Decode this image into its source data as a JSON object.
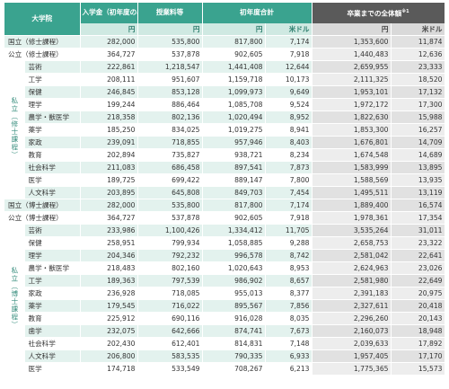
{
  "header": {
    "col_univ": "大学院",
    "col_entrance": "入学金（初年度のみ）",
    "col_tuition": "授業料等",
    "col_first_year": "初年度合計",
    "col_total": "卒業までの全体額",
    "total_note": "※1",
    "unit_yen": "円",
    "unit_usd": "米ドル"
  },
  "rows_top": [
    {
      "univ": "国立（修士課程）",
      "entrance": "282,000",
      "tuition": "535,800",
      "first_yen": "817,800",
      "first_usd": "7,174",
      "total_yen": "1,353,600",
      "total_usd": "11,874"
    },
    {
      "univ": "公立（修士課程）",
      "entrance": "364,727",
      "tuition": "537,878",
      "first_yen": "902,605",
      "first_usd": "7,918",
      "total_yen": "1,440,483",
      "total_usd": "12,636"
    }
  ],
  "private_master_label": "私立（修士課程）",
  "private_master": [
    {
      "field": "芸術",
      "entrance": "222,861",
      "tuition": "1,218,547",
      "first_yen": "1,441,408",
      "first_usd": "12,644",
      "total_yen": "2,659,955",
      "total_usd": "23,333"
    },
    {
      "field": "工学",
      "entrance": "208,111",
      "tuition": "951,607",
      "first_yen": "1,159,718",
      "first_usd": "10,173",
      "total_yen": "2,111,325",
      "total_usd": "18,520"
    },
    {
      "field": "保健",
      "entrance": "246,845",
      "tuition": "853,128",
      "first_yen": "1,099,973",
      "first_usd": "9,649",
      "total_yen": "1,953,101",
      "total_usd": "17,132"
    },
    {
      "field": "理学",
      "entrance": "199,244",
      "tuition": "886,464",
      "first_yen": "1,085,708",
      "first_usd": "9,524",
      "total_yen": "1,972,172",
      "total_usd": "17,300"
    },
    {
      "field": "農学・獣医学",
      "entrance": "218,358",
      "tuition": "802,136",
      "first_yen": "1,020,494",
      "first_usd": "8,952",
      "total_yen": "1,822,630",
      "total_usd": "15,988"
    },
    {
      "field": "薬学",
      "entrance": "185,250",
      "tuition": "834,025",
      "first_yen": "1,019,275",
      "first_usd": "8,941",
      "total_yen": "1,853,300",
      "total_usd": "16,257"
    },
    {
      "field": "家政",
      "entrance": "239,091",
      "tuition": "718,855",
      "first_yen": "957,946",
      "first_usd": "8,403",
      "total_yen": "1,676,801",
      "total_usd": "14,709"
    },
    {
      "field": "教育",
      "entrance": "202,894",
      "tuition": "735,827",
      "first_yen": "938,721",
      "first_usd": "8,234",
      "total_yen": "1,674,548",
      "total_usd": "14,689"
    },
    {
      "field": "社会科学",
      "entrance": "211,083",
      "tuition": "686,458",
      "first_yen": "897,541",
      "first_usd": "7,873",
      "total_yen": "1,583,999",
      "total_usd": "13,895"
    },
    {
      "field": "医学",
      "entrance": "189,725",
      "tuition": "699,422",
      "first_yen": "889,147",
      "first_usd": "7,800",
      "total_yen": "1,588,569",
      "total_usd": "13,935"
    },
    {
      "field": "人文科学",
      "entrance": "203,895",
      "tuition": "645,808",
      "first_yen": "849,703",
      "first_usd": "7,454",
      "total_yen": "1,495,511",
      "total_usd": "13,119"
    }
  ],
  "rows_mid": [
    {
      "univ": "国立（博士課程）",
      "entrance": "282,000",
      "tuition": "535,800",
      "first_yen": "817,800",
      "first_usd": "7,174",
      "total_yen": "1,889,400",
      "total_usd": "16,574"
    },
    {
      "univ": "公立（博士課程）",
      "entrance": "364,727",
      "tuition": "537,878",
      "first_yen": "902,605",
      "first_usd": "7,918",
      "total_yen": "1,978,361",
      "total_usd": "17,354"
    }
  ],
  "private_doctor_label": "私立（博士課程）",
  "private_doctor": [
    {
      "field": "芸術",
      "entrance": "233,986",
      "tuition": "1,100,426",
      "first_yen": "1,334,412",
      "first_usd": "11,705",
      "total_yen": "3,535,264",
      "total_usd": "31,011"
    },
    {
      "field": "保健",
      "entrance": "258,951",
      "tuition": "799,934",
      "first_yen": "1,058,885",
      "first_usd": "9,288",
      "total_yen": "2,658,753",
      "total_usd": "23,322"
    },
    {
      "field": "理学",
      "entrance": "204,346",
      "tuition": "792,232",
      "first_yen": "996,578",
      "first_usd": "8,742",
      "total_yen": "2,581,042",
      "total_usd": "22,641"
    },
    {
      "field": "農学・獣医学",
      "entrance": "218,483",
      "tuition": "802,160",
      "first_yen": "1,020,643",
      "first_usd": "8,953",
      "total_yen": "2,624,963",
      "total_usd": "23,026"
    },
    {
      "field": "工学",
      "entrance": "189,363",
      "tuition": "797,539",
      "first_yen": "986,902",
      "first_usd": "8,657",
      "total_yen": "2,581,980",
      "total_usd": "22,649"
    },
    {
      "field": "家政",
      "entrance": "236,928",
      "tuition": "718,085",
      "first_yen": "955,013",
      "first_usd": "8,377",
      "total_yen": "2,391,183",
      "total_usd": "20,975"
    },
    {
      "field": "薬学",
      "entrance": "179,545",
      "tuition": "716,022",
      "first_yen": "895,567",
      "first_usd": "7,856",
      "total_yen": "2,327,611",
      "total_usd": "20,418"
    },
    {
      "field": "教育",
      "entrance": "225,912",
      "tuition": "690,116",
      "first_yen": "916,028",
      "first_usd": "8,035",
      "total_yen": "2,296,260",
      "total_usd": "20,143"
    },
    {
      "field": "歯学",
      "entrance": "232,075",
      "tuition": "642,666",
      "first_yen": "874,741",
      "first_usd": "7,673",
      "total_yen": "2,160,073",
      "total_usd": "18,948"
    },
    {
      "field": "社会科学",
      "entrance": "202,430",
      "tuition": "612,401",
      "first_yen": "814,831",
      "first_usd": "7,148",
      "total_yen": "2,039,633",
      "total_usd": "17,892"
    },
    {
      "field": "人文科学",
      "entrance": "206,800",
      "tuition": "583,535",
      "first_yen": "790,335",
      "first_usd": "6,933",
      "total_yen": "1,957,405",
      "total_usd": "17,170"
    },
    {
      "field": "医学",
      "entrance": "174,718",
      "tuition": "533,549",
      "first_yen": "708,267",
      "first_usd": "6,213",
      "total_yen": "1,775,365",
      "total_usd": "15,573"
    }
  ]
}
